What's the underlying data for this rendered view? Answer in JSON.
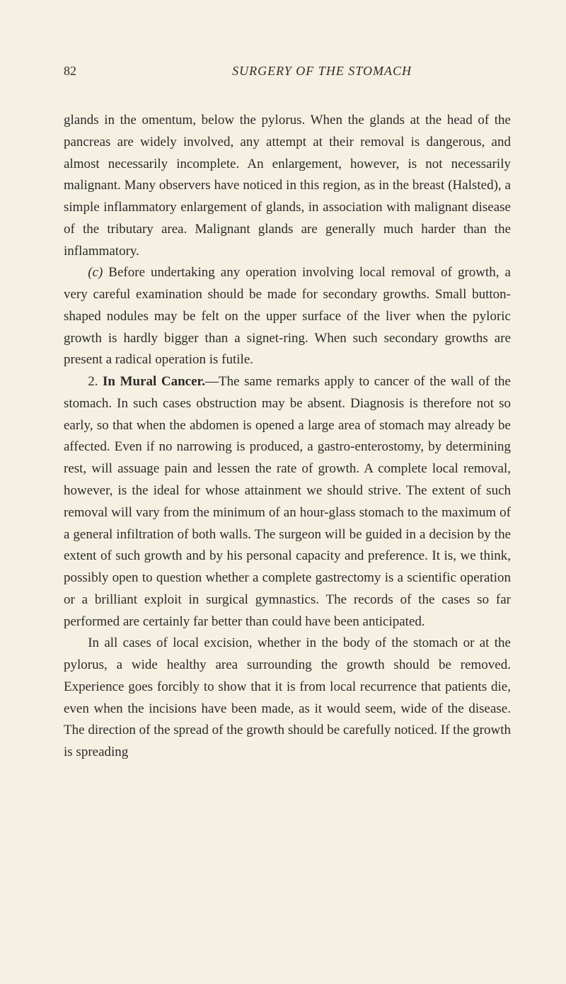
{
  "colors": {
    "background": "#f5f0e1",
    "text": "#2a2a2a"
  },
  "typography": {
    "body_fontsize_pt": 14,
    "line_height": 1.62,
    "font_family": "Georgia, Times New Roman, serif"
  },
  "header": {
    "page_number": "82",
    "running_head": "SURGERY OF THE STOMACH"
  },
  "paragraphs": {
    "p1": "glands in the omentum, below the pylorus. When the glands at the head of the pancreas are widely involved, any attempt at their removal is dangerous, and almost necessarily incomplete. An enlargement, however, is not necessarily malignant. Many observers have noticed in this region, as in the breast (Halsted), a simple inflammatory enlargement of glands, in association with malignant disease of the tributary area. Malignant glands are generally much harder than the inflammatory.",
    "p2_lead": "(c)",
    "p2": " Before undertaking any operation involving local removal of growth, a very careful examination should be made for secondary growths. Small button-shaped nodules may be felt on the upper surface of the liver when the pyloric growth is hardly bigger than a signet-ring. When such secondary growths are present a radical operation is futile.",
    "p3_num": "2. ",
    "p3_title": "In Mural Cancer.",
    "p3": "—The same remarks apply to cancer of the wall of the stomach. In such cases obstruction may be absent. Diagnosis is therefore not so early, so that when the abdomen is opened a large area of stomach may already be affected. Even if no narrowing is produced, a gastro-enterostomy, by determining rest, will assuage pain and lessen the rate of growth. A complete local removal, however, is the ideal for whose attainment we should strive. The extent of such removal will vary from the minimum of an hour-glass stomach to the maximum of a general infiltration of both walls. The surgeon will be guided in a decision by the extent of such growth and by his personal capacity and preference. It is, we think, possibly open to question whether a complete gastrectomy is a scientific operation or a brilliant exploit in surgical gymnastics. The records of the cases so far performed are certainly far better than could have been anticipated.",
    "p4": "In all cases of local excision, whether in the body of the stomach or at the pylorus, a wide healthy area surrounding the growth should be removed. Experience goes forcibly to show that it is from local recurrence that patients die, even when the incisions have been made, as it would seem, wide of the disease. The direction of the spread of the growth should be carefully noticed. If the growth is spreading"
  }
}
